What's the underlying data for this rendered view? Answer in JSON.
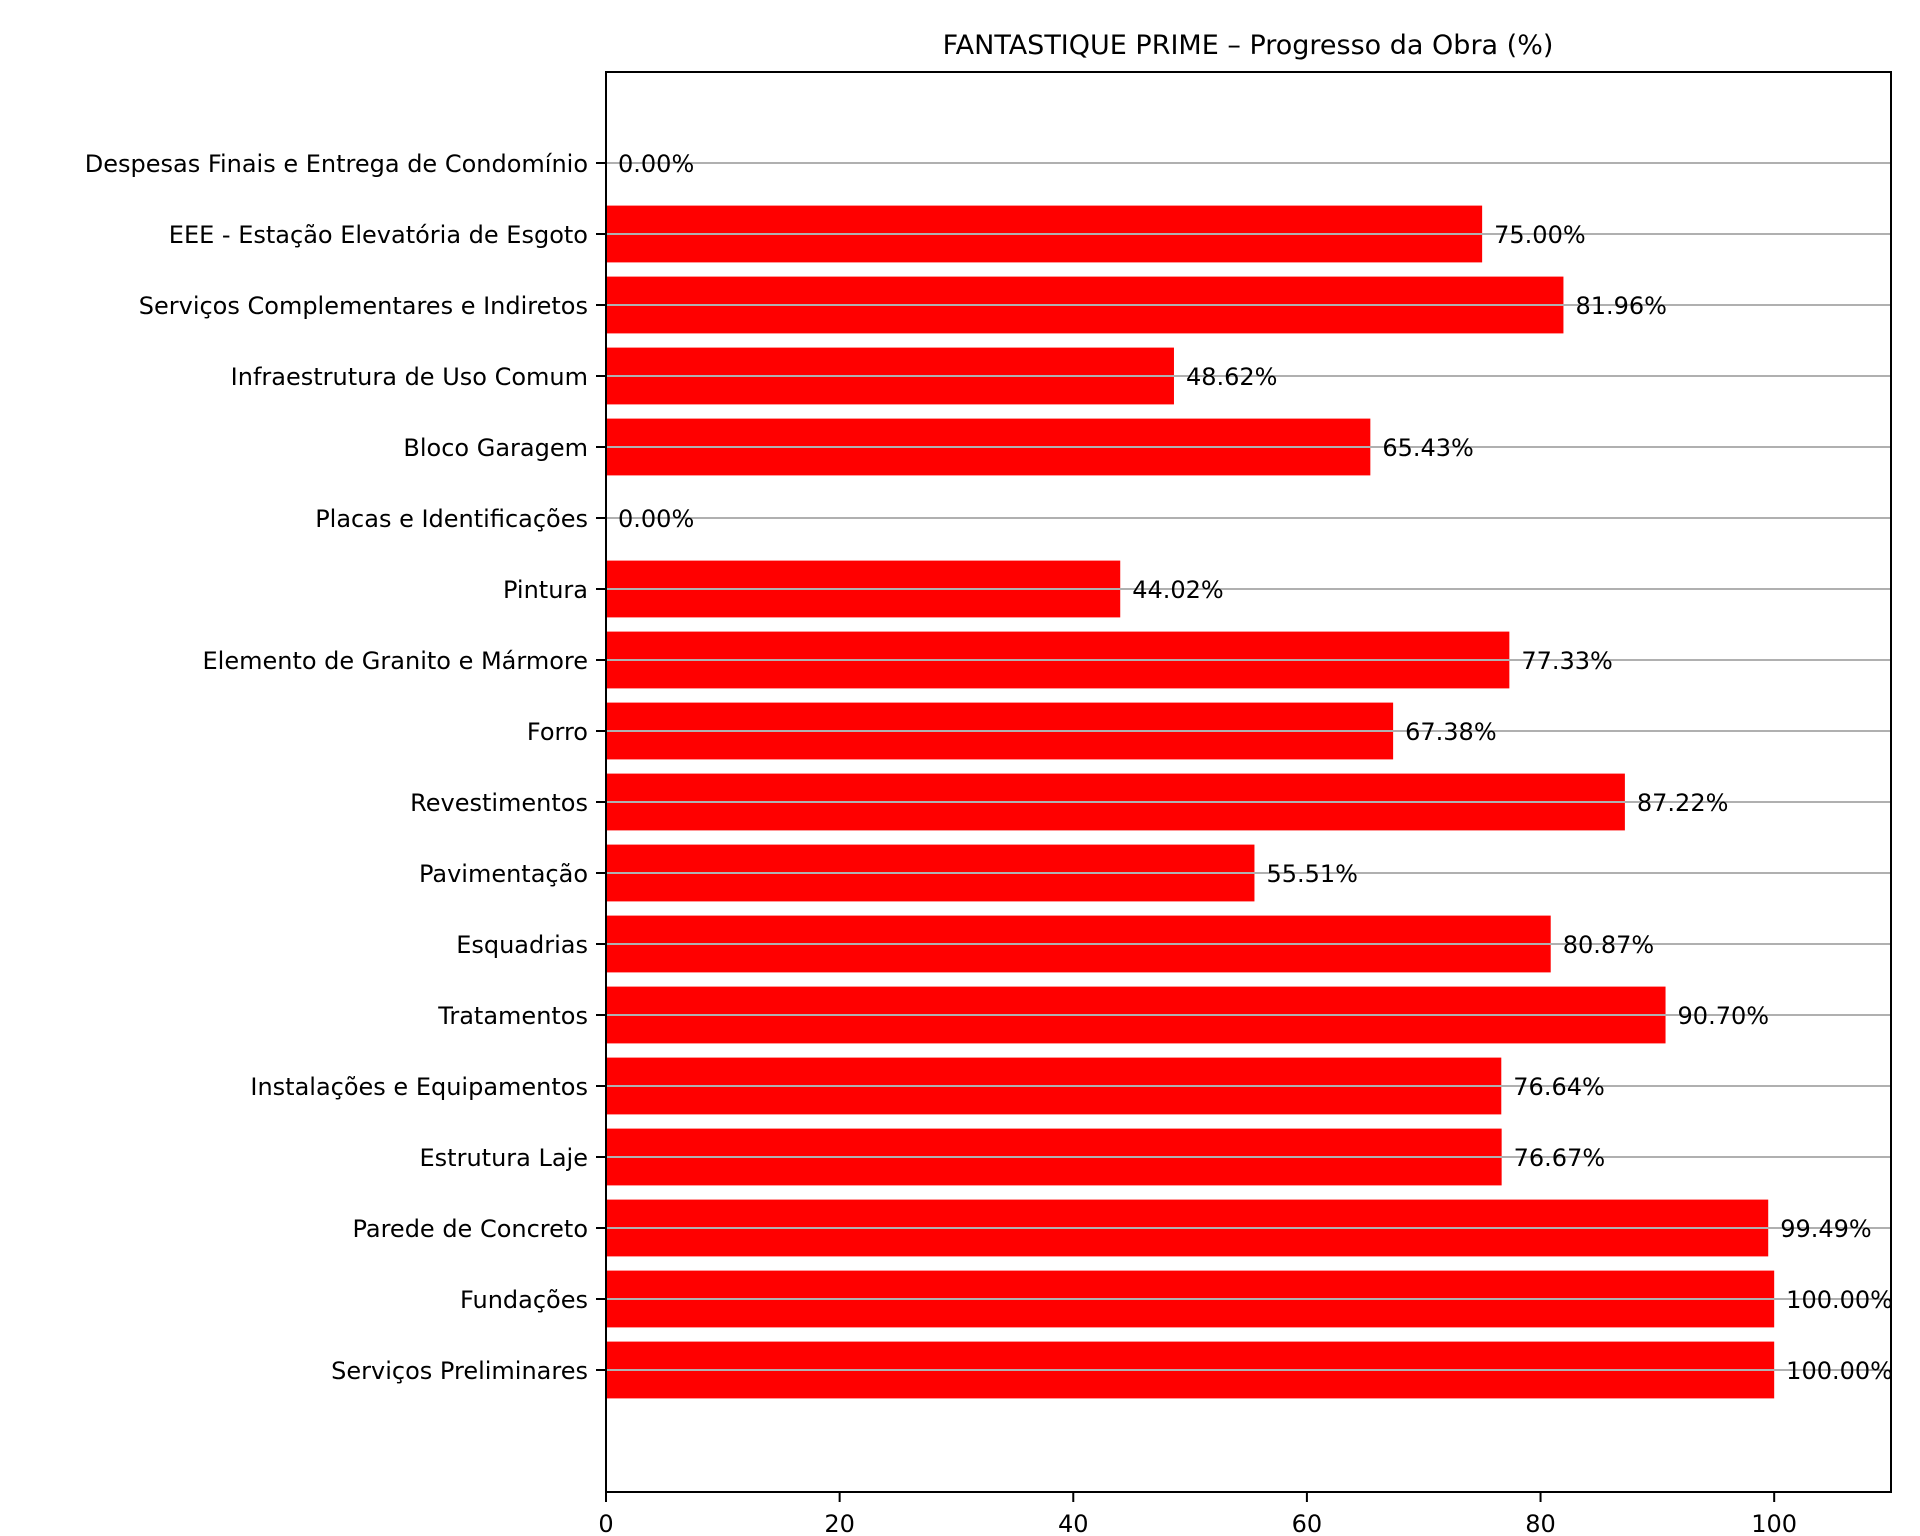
{
  "chart_data": {
    "type": "bar",
    "orientation": "horizontal",
    "title": "FANTASTIQUE PRIME – Progresso da Obra (%)",
    "xlabel": "",
    "ylabel": "",
    "xlim": [
      0,
      110
    ],
    "xticks": [
      0,
      20,
      40,
      60,
      80,
      100
    ],
    "grid": "horizontal",
    "legend": "none",
    "bar_color": "#ff0000",
    "grid_color": "#b0b0b0",
    "categories": [
      "Serviços Preliminares",
      "Fundações",
      "Parede de Concreto",
      "Estrutura Laje",
      "Instalações e Equipamentos",
      "Tratamentos",
      "Esquadrias",
      "Pavimentação",
      "Revestimentos",
      "Forro",
      "Elemento de Granito e Mármore",
      "Pintura",
      "Placas e Identificações",
      "Bloco Garagem",
      "Infraestrutura de Uso Comum",
      "Serviços Complementares e Indiretos",
      "EEE - Estação Elevatória de Esgoto",
      "Despesas Finais e Entrega de Condomínio"
    ],
    "values": [
      100.0,
      100.0,
      99.49,
      76.67,
      76.64,
      90.7,
      80.87,
      55.51,
      87.22,
      67.38,
      77.33,
      44.02,
      0.0,
      65.43,
      48.62,
      81.96,
      75.0,
      0.0
    ],
    "data_labels": [
      "100.00%",
      "100.00%",
      "99.49%",
      "76.67%",
      "76.64%",
      "90.70%",
      "80.87%",
      "55.51%",
      "87.22%",
      "67.38%",
      "77.33%",
      "44.02%",
      "0.00%",
      "65.43%",
      "48.62%",
      "81.96%",
      "75.00%",
      "0.00%"
    ]
  }
}
